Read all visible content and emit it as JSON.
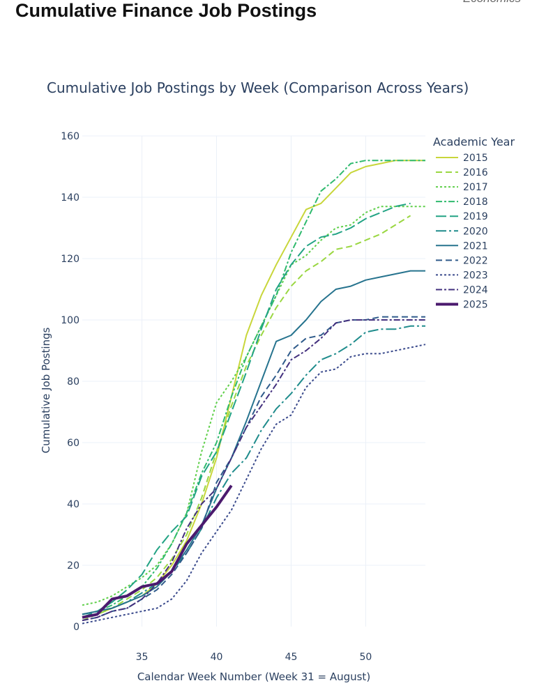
{
  "page": {
    "title": "Cumulative Finance Job Postings",
    "corner_note": "Economics"
  },
  "chart_data": {
    "type": "line",
    "title": "Cumulative Job Postings by Week (Comparison Across Years)",
    "xlabel": "Calendar Week Number (Week 31 = August)",
    "ylabel": "Cumulative Job Postings",
    "xlim": [
      31,
      54
    ],
    "ylim": [
      0,
      160
    ],
    "xticks": [
      35,
      40,
      45,
      50
    ],
    "yticks": [
      0,
      20,
      40,
      60,
      80,
      100,
      120,
      140,
      160
    ],
    "grid": true,
    "legend": {
      "title": "Academic Year",
      "position": "right"
    },
    "series": [
      {
        "name": "2015",
        "color": "#c8d63a",
        "dash": "solid",
        "width": 2,
        "x": [
          31,
          32,
          33,
          34,
          35,
          36,
          37,
          38,
          39,
          40,
          41,
          42,
          43,
          44,
          45,
          46,
          47,
          48,
          49,
          50,
          51,
          52,
          53,
          54
        ],
        "y": [
          3,
          4,
          6,
          8,
          10,
          14,
          20,
          28,
          40,
          55,
          75,
          95,
          108,
          118,
          127,
          136,
          138,
          143,
          148,
          150,
          151,
          152,
          152,
          152
        ]
      },
      {
        "name": "2016",
        "color": "#9ad741",
        "dash": "dash",
        "width": 2,
        "x": [
          31,
          32,
          33,
          34,
          35,
          36,
          37,
          38,
          39,
          40,
          41,
          42,
          43,
          44,
          45,
          46,
          47,
          48,
          49,
          50,
          51,
          52,
          53
        ],
        "y": [
          2,
          4,
          6,
          9,
          12,
          16,
          22,
          30,
          42,
          57,
          72,
          85,
          95,
          104,
          111,
          116,
          119,
          123,
          124,
          126,
          128,
          131,
          134
        ]
      },
      {
        "name": "2017",
        "color": "#5fcf4a",
        "dash": "dot",
        "width": 2,
        "x": [
          31,
          32,
          33,
          34,
          35,
          36,
          37,
          38,
          39,
          40,
          41,
          42,
          43,
          44,
          45,
          46,
          47,
          48,
          49,
          50,
          51,
          52,
          53,
          54
        ],
        "y": [
          7,
          8,
          10,
          13,
          16,
          20,
          27,
          37,
          57,
          73,
          80,
          88,
          98,
          108,
          118,
          121,
          126,
          130,
          131,
          135,
          137,
          137,
          137,
          137
        ]
      },
      {
        "name": "2018",
        "color": "#2fba6e",
        "dash": "dashdot",
        "width": 2,
        "x": [
          31,
          32,
          33,
          34,
          35,
          36,
          37,
          38,
          39,
          40,
          41,
          42,
          43,
          44,
          45,
          46,
          47,
          48,
          49,
          50,
          51,
          52,
          53,
          54
        ],
        "y": [
          4,
          5,
          7,
          10,
          13,
          19,
          27,
          37,
          50,
          60,
          75,
          88,
          98,
          108,
          122,
          132,
          142,
          146,
          151,
          152,
          152,
          152,
          152,
          152
        ]
      },
      {
        "name": "2019",
        "color": "#22a384",
        "dash": "longdash",
        "width": 2,
        "x": [
          31,
          32,
          33,
          34,
          35,
          36,
          37,
          38,
          39,
          40,
          41,
          42,
          43,
          44,
          45,
          46,
          47,
          48,
          49,
          50,
          51,
          52,
          53
        ],
        "y": [
          3,
          5,
          8,
          12,
          17,
          25,
          31,
          36,
          49,
          57,
          70,
          83,
          97,
          110,
          118,
          124,
          127,
          128,
          130,
          133,
          135,
          137,
          138
        ]
      },
      {
        "name": "2020",
        "color": "#1f8c8c",
        "dash": "longdashdot",
        "width": 2,
        "x": [
          31,
          32,
          33,
          34,
          35,
          36,
          37,
          38,
          39,
          40,
          41,
          42,
          43,
          44,
          45,
          46,
          47,
          48,
          49,
          50,
          51,
          52,
          53,
          54
        ],
        "y": [
          4,
          5,
          6,
          8,
          11,
          14,
          18,
          24,
          32,
          42,
          50,
          55,
          64,
          71,
          76,
          82,
          87,
          89,
          92,
          96,
          97,
          97,
          98,
          98
        ]
      },
      {
        "name": "2021",
        "color": "#26738e",
        "dash": "solid",
        "width": 2,
        "x": [
          31,
          32,
          33,
          34,
          35,
          36,
          37,
          38,
          39,
          40,
          41,
          42,
          43,
          44,
          45,
          46,
          47,
          48,
          49,
          50,
          51,
          52,
          53,
          54
        ],
        "y": [
          4,
          5,
          6,
          8,
          10,
          13,
          18,
          25,
          33,
          45,
          55,
          67,
          80,
          93,
          95,
          100,
          106,
          110,
          111,
          113,
          114,
          115,
          116,
          116
        ]
      },
      {
        "name": "2022",
        "color": "#2f5b8b",
        "dash": "dash",
        "width": 2,
        "x": [
          31,
          32,
          33,
          34,
          35,
          36,
          37,
          38,
          39,
          40,
          41,
          42,
          43,
          44,
          45,
          46,
          47,
          48,
          49,
          50,
          51,
          52,
          53,
          54
        ],
        "y": [
          2,
          3,
          5,
          6,
          9,
          12,
          17,
          24,
          32,
          47,
          55,
          65,
          75,
          82,
          90,
          94,
          95,
          99,
          100,
          100,
          101,
          101,
          101,
          101
        ]
      },
      {
        "name": "2023",
        "color": "#3a4a8c",
        "dash": "dot",
        "width": 2,
        "x": [
          31,
          32,
          33,
          34,
          35,
          36,
          37,
          38,
          39,
          40,
          41,
          42,
          43,
          44,
          45,
          46,
          47,
          48,
          49,
          50,
          51,
          52,
          53,
          54
        ],
        "y": [
          1,
          2,
          3,
          4,
          5,
          6,
          9,
          15,
          24,
          31,
          38,
          48,
          58,
          66,
          69,
          78,
          83,
          84,
          88,
          89,
          89,
          90,
          91,
          92
        ]
      },
      {
        "name": "2024",
        "color": "#43307e",
        "dash": "dashdot",
        "width": 2,
        "x": [
          31,
          32,
          33,
          34,
          35,
          36,
          37,
          38,
          39,
          40,
          41,
          42,
          43,
          44,
          45,
          46,
          47,
          48,
          49,
          50,
          51,
          52,
          53,
          54
        ],
        "y": [
          2,
          3,
          5,
          6,
          9,
          14,
          21,
          32,
          40,
          45,
          55,
          65,
          72,
          79,
          87,
          90,
          94,
          99,
          100,
          100,
          100,
          100,
          100,
          100
        ]
      },
      {
        "name": "2025",
        "color": "#4b1a6e",
        "dash": "solid",
        "width": 4,
        "x": [
          31,
          32,
          33,
          34,
          35,
          36,
          37,
          38,
          39,
          40,
          41
        ],
        "y": [
          3,
          4,
          9,
          10,
          13,
          14,
          18,
          27,
          33,
          39,
          46
        ]
      }
    ]
  }
}
